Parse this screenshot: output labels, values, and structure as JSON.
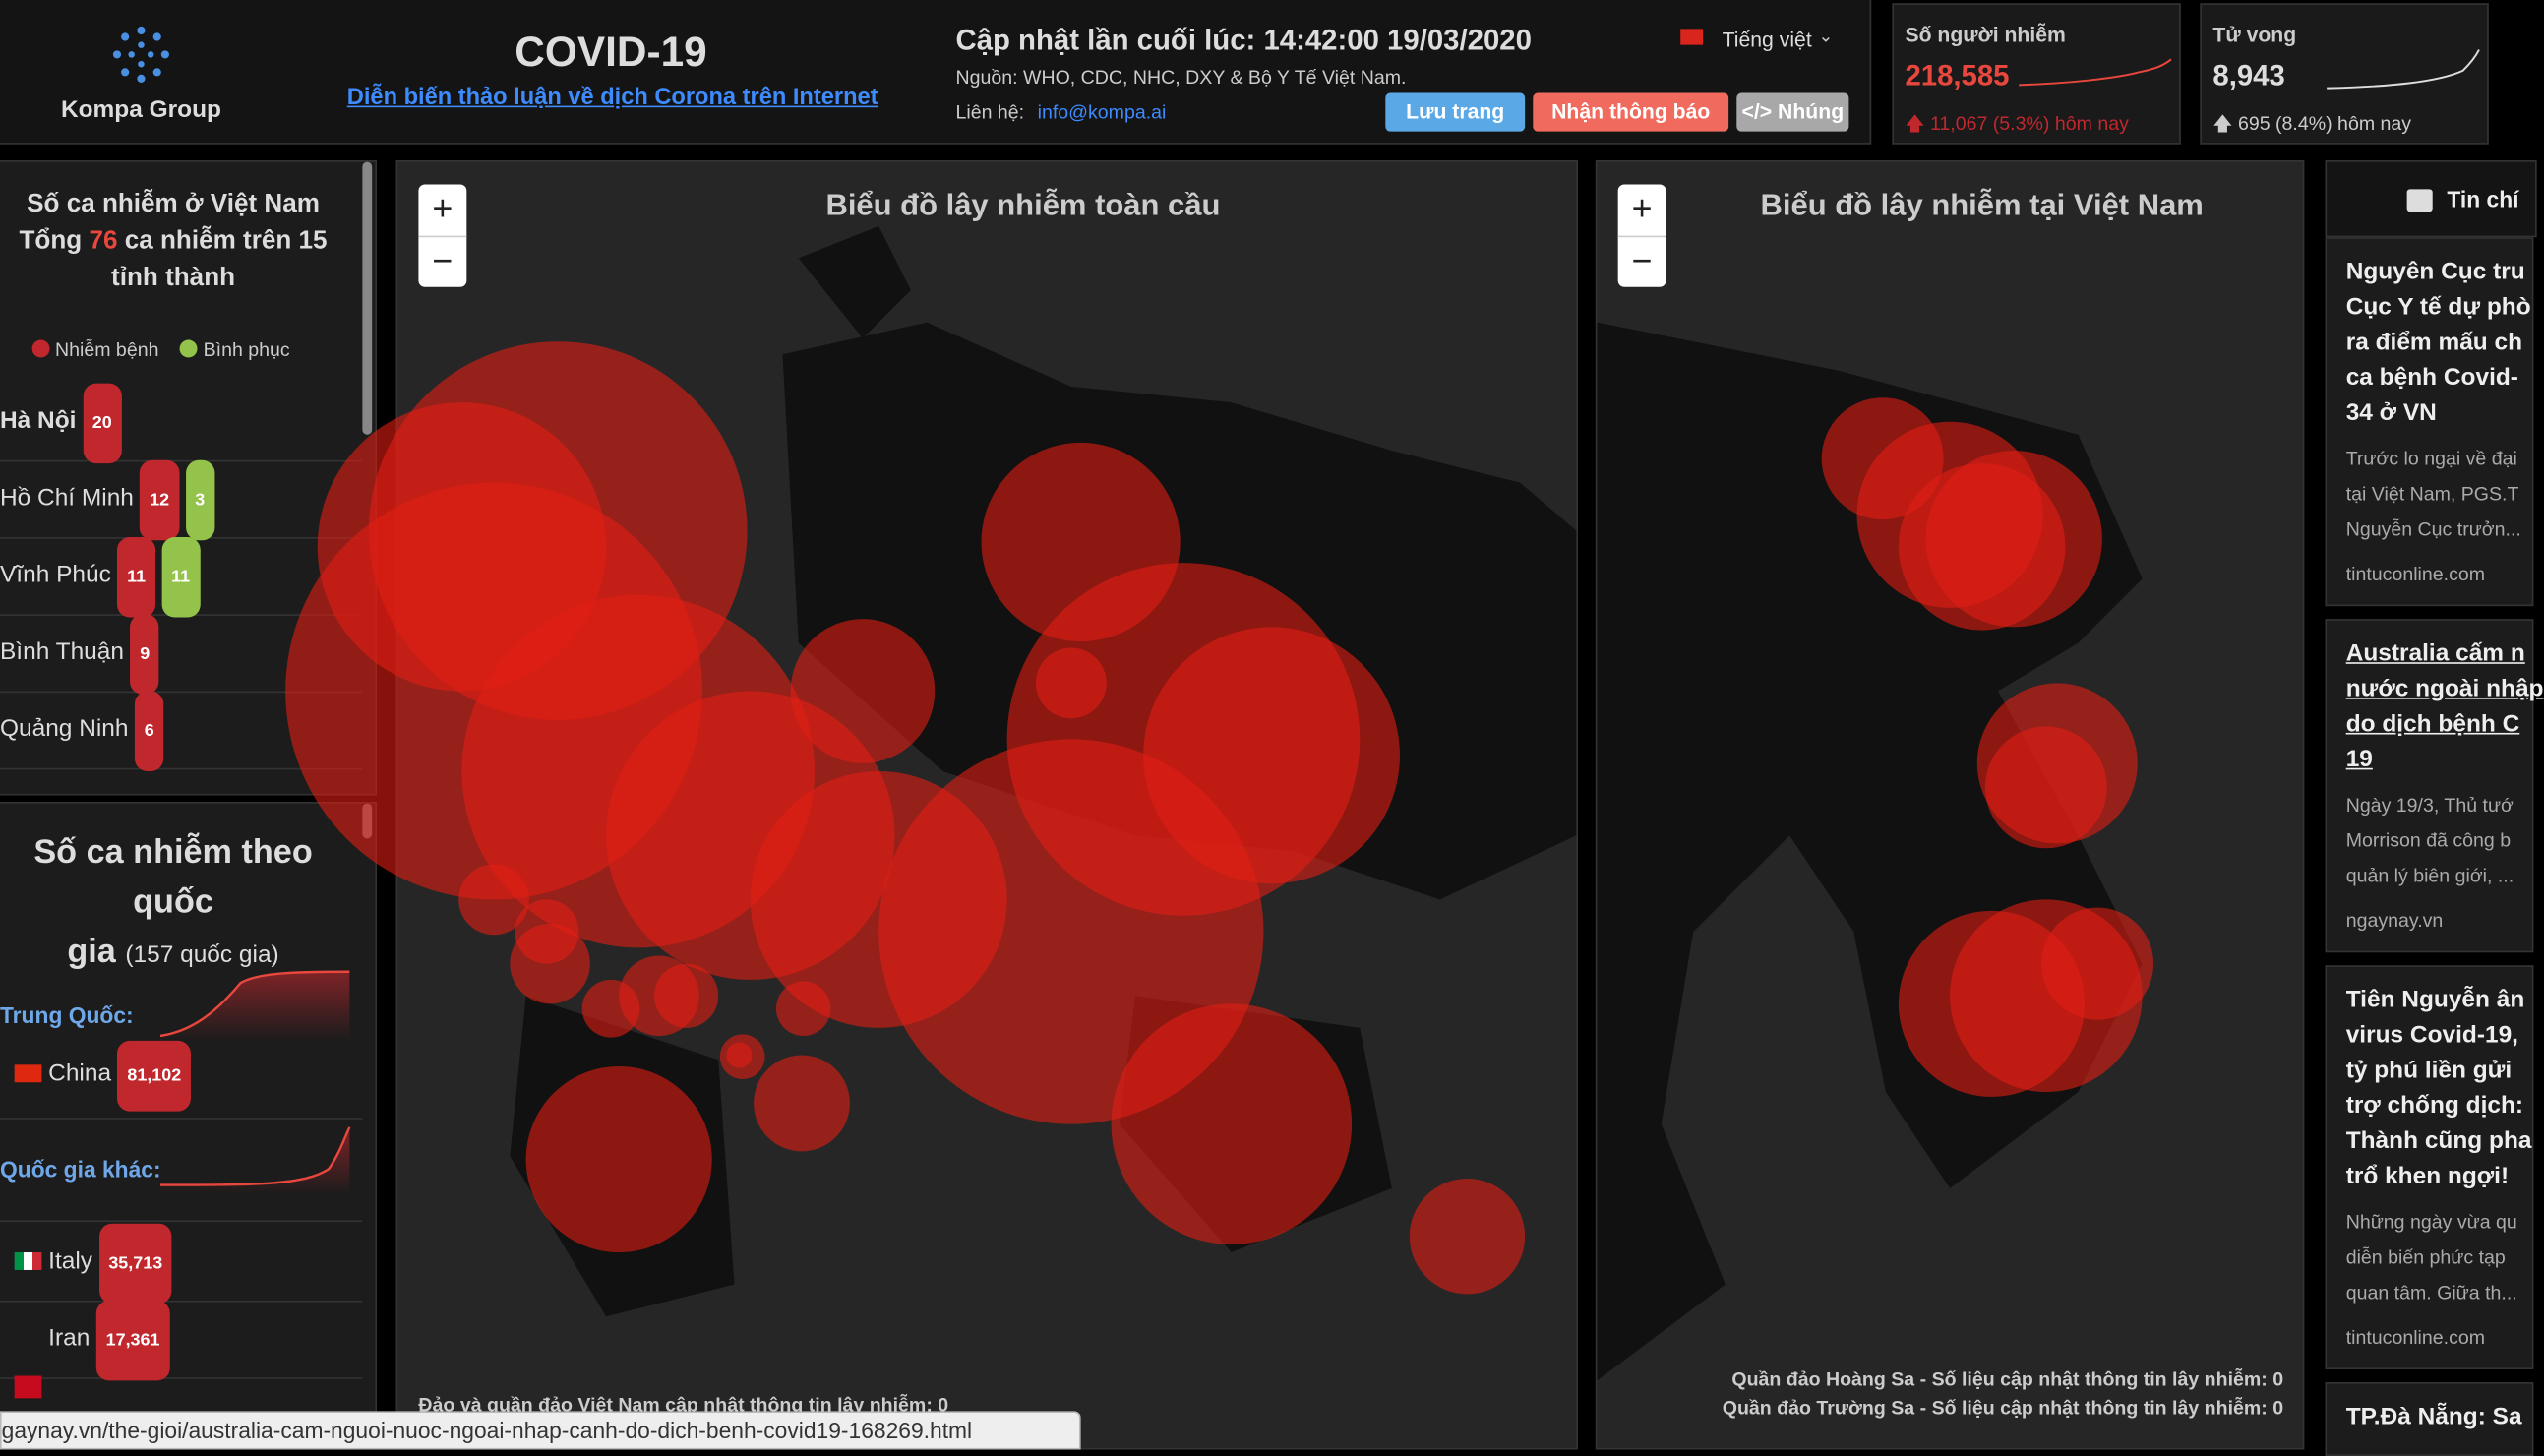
{
  "header": {
    "brand": "Kompa Group",
    "title": "COVID-19",
    "subtitle_link": "Diễn biến thảo luận về dịch Corona trên Internet",
    "updated": "Cập nhật lần cuối lúc: 14:42:00 19/03/2020",
    "source": "Nguồn: WHO, CDC, NHC, DXY & Bộ Y Tế Việt Nam.",
    "contact_label": "Liên hệ:",
    "contact_email": "info@kompa.ai",
    "language": "Tiếng việt",
    "buttons": [
      "Lưu trang",
      "Nhận thông báo",
      "</> Nhúng"
    ]
  },
  "stats": [
    {
      "label": "Số người nhiễm",
      "value": "218,585",
      "change": "11,067 (5.3%) hôm nay"
    },
    {
      "label": "Tử vong",
      "value": "8,943",
      "change": "695 (8.4%) hôm nay"
    }
  ],
  "vietnam": {
    "title_line1": "Số ca nhiễm ở Việt Nam",
    "title_prefix": "Tổng",
    "total": 76,
    "title_suffix": "ca nhiễm trên 15 tỉnh thành",
    "legend": [
      "Nhiễm bệnh",
      "Bình phục"
    ],
    "provinces": [
      {
        "name": "Hà Nội",
        "infected": 20
      },
      {
        "name": "Hồ Chí Minh",
        "infected": 12,
        "recovered": 3
      },
      {
        "name": "Vĩnh Phúc",
        "infected": 11,
        "recovered": 11
      },
      {
        "name": "Bình Thuận",
        "infected": 9
      },
      {
        "name": "Quảng Ninh",
        "infected": 6
      }
    ]
  },
  "countries": {
    "title": "Số ca nhiễm theo quốc",
    "title_end": "gia",
    "count": "(157 quốc gia)",
    "china_label": "Trung Quốc:",
    "china": {
      "name": "China",
      "cases": "81,102"
    },
    "others_label": "Quốc gia khác:",
    "list": [
      {
        "name": "Italy",
        "cases": "35,713"
      },
      {
        "name": "Iran",
        "cases": "17,361"
      }
    ]
  },
  "maps": {
    "zoom": [
      "+",
      "−"
    ],
    "global_title": "Biểu đồ lây nhiễm toàn cầu",
    "global_note": "Đảo và quần đảo Việt Nam cập nhật thông tin lây nhiễm: 0",
    "vn_title": "Biểu đồ lây nhiễm tại Việt Nam",
    "vn_notes": [
      "Quần đảo Hoàng Sa - Số liệu cập nhật thông tin lây nhiễm: 0",
      "Quần đảo Trường Sa - Số liệu cập nhật thông tin lây nhiễm: 0"
    ]
  },
  "news": {
    "header": "Tin chí",
    "items": [
      {
        "title": [
          "Nguyên Cục tru",
          "Cục Y tế dự phò",
          "ra điểm mấu ch",
          "ca bệnh Covid-",
          "34 ở VN"
        ],
        "summary": [
          "Trước lo ngại về đại",
          "tại Việt Nam, PGS.T",
          "Nguyễn Cục trưởn..."
        ],
        "source": "tintuconline.com"
      },
      {
        "title": [
          "Australia cấm n",
          "nước ngoài nhập",
          "do dịch bệnh C",
          "19"
        ],
        "summary": [
          "Ngày 19/3, Thủ tướ",
          "Morrison đã công b",
          "quản lý biên giới, ..."
        ],
        "source": "ngaynay.vn"
      },
      {
        "title": [
          "Tiên Nguyễn ân",
          "virus Covid-19,",
          "tỷ phú liền gửi",
          "trợ chống dịch:",
          "Thành cũng pha",
          "trổ khen ngợi!"
        ],
        "summary": [
          "Những ngày vừa qu",
          "diễn biến phức tạp",
          "quan tâm. Giữa th..."
        ],
        "source": "tintuconline.com"
      },
      {
        "title": [
          "TP.Đà Nẵng: Sa"
        ]
      }
    ]
  },
  "status_url": "gaynay.vn/the-gioi/australia-cam-nguoi-nuoc-ngoai-nhap-canh-do-dich-benh-covid19-168269.html"
}
